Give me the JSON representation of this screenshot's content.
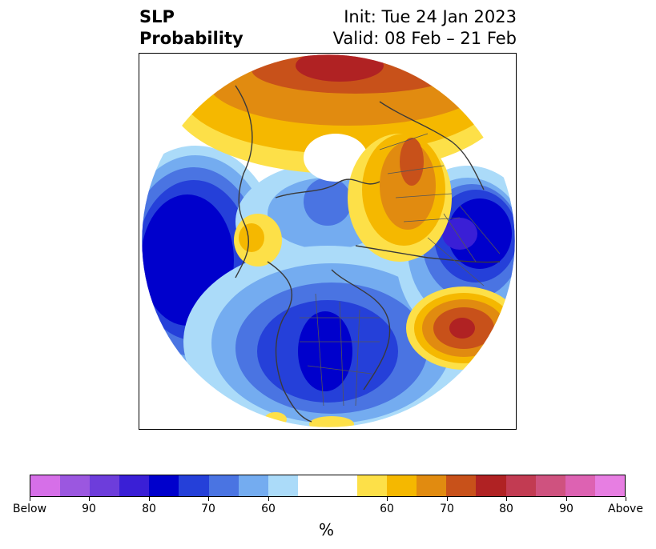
{
  "title": {
    "left_line1": "SLP",
    "left_line2": "Probability",
    "right_line1": "Init: Tue 24 Jan 2023",
    "right_line2": "Valid: 08 Feb – 21 Feb"
  },
  "map": {
    "features": [
      {
        "name": "anomaly-below-aleutian-pacific",
        "category": "below",
        "peak_percent": 85
      },
      {
        "name": "anomaly-below-north-america",
        "category": "below",
        "peak_percent": 80
      },
      {
        "name": "anomaly-below-europe-scandinavia",
        "category": "below",
        "peak_percent": 85
      },
      {
        "name": "anomaly-below-arctic",
        "category": "below",
        "peak_percent": 65
      },
      {
        "name": "anomaly-above-siberia",
        "category": "above",
        "peak_percent": 80
      },
      {
        "name": "anomaly-above-central-asia",
        "category": "above",
        "peak_percent": 70
      },
      {
        "name": "anomaly-above-north-atlantic",
        "category": "above",
        "peak_percent": 80
      },
      {
        "name": "anomaly-above-alaska",
        "category": "above",
        "peak_percent": 65
      }
    ]
  },
  "colorbar": {
    "colors": [
      "#d66fe8",
      "#9b57e0",
      "#6d3ddb",
      "#3a1fd6",
      "#0000cc",
      "#2540d9",
      "#4a74e2",
      "#74acf0",
      "#abdbf9",
      "#ffffff",
      "#ffffff",
      "#fde048",
      "#f5b800",
      "#e18b10",
      "#c8511a",
      "#b02223",
      "#c23b52",
      "#cf527f",
      "#dd62b2",
      "#e77ee2"
    ],
    "tick_labels": [
      "Below",
      "90",
      "80",
      "70",
      "60",
      "60",
      "70",
      "80",
      "90",
      "Above"
    ],
    "unit": "%"
  }
}
